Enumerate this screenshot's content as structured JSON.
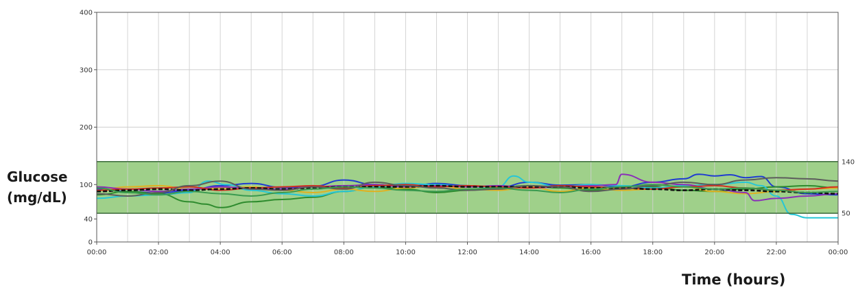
{
  "chart_data": {
    "type": "line",
    "xlabel": "Time (hours)",
    "ylabel_line1": "Glucose",
    "ylabel_line2": "(mg/dL)",
    "xlim": [
      0,
      24
    ],
    "ylim": [
      0,
      400
    ],
    "x_ticks": [
      0,
      2,
      4,
      6,
      8,
      10,
      12,
      14,
      16,
      18,
      20,
      22,
      24
    ],
    "x_tick_labels": [
      "00:00",
      "02:00",
      "04:00",
      "06:00",
      "08:00",
      "10:00",
      "12:00",
      "14:00",
      "16:00",
      "18:00",
      "20:00",
      "22:00",
      "00:00"
    ],
    "y_ticks": [
      0,
      40,
      100,
      200,
      300,
      400
    ],
    "y_tick_labels": [
      "0",
      "40",
      "100",
      "200",
      "300",
      "400"
    ],
    "target_range": {
      "low": 50,
      "high": 140,
      "low_label": "50",
      "high_label": "140",
      "color": "#9fd08a",
      "border_color": "#3a6a3a"
    },
    "vertical_grid_ticks": [
      1,
      2,
      3,
      4,
      5,
      6,
      7,
      8,
      9,
      10,
      11,
      12,
      13,
      14,
      15,
      16,
      17,
      18,
      19,
      20,
      21,
      22,
      23
    ],
    "horizontal_grid_values": [
      200,
      300
    ],
    "grid": true,
    "series": [
      {
        "color": "#1f3bd1",
        "x": [
          0,
          1,
          2,
          3,
          4,
          5,
          6,
          7,
          8,
          9,
          10,
          11,
          12,
          13,
          14,
          15,
          16,
          17,
          18,
          19,
          19.5,
          20,
          20.5,
          21,
          21.5,
          22,
          23,
          24
        ],
        "values": [
          92,
          88,
          85,
          90,
          98,
          102,
          95,
          97,
          108,
          100,
          96,
          102,
          98,
          95,
          104,
          99,
          100,
          96,
          104,
          110,
          118,
          115,
          117,
          112,
          114,
          96,
          84,
          82
        ]
      },
      {
        "color": "#2e8b2e",
        "x": [
          0,
          1,
          2,
          3,
          3.5,
          4,
          5,
          6,
          7,
          8,
          9,
          10,
          11,
          12,
          13,
          14,
          15,
          16,
          17,
          18,
          19,
          20,
          21,
          22,
          23,
          24
        ],
        "values": [
          82,
          88,
          84,
          70,
          66,
          60,
          70,
          74,
          78,
          88,
          96,
          92,
          86,
          90,
          95,
          98,
          94,
          90,
          92,
          96,
          90,
          88,
          92,
          96,
          98,
          94
        ]
      },
      {
        "color": "#26c6d6",
        "x": [
          0,
          1,
          2,
          3,
          3.6,
          4.2,
          5,
          6,
          7,
          8,
          9,
          10,
          11,
          12,
          13,
          13.5,
          14,
          15,
          16,
          17,
          18,
          19,
          20,
          21,
          21.5,
          22,
          22.5,
          23,
          24
        ],
        "values": [
          76,
          80,
          82,
          86,
          106,
          100,
          90,
          84,
          80,
          88,
          96,
          102,
          100,
          96,
          96,
          115,
          104,
          96,
          100,
          98,
          94,
          98,
          100,
          104,
          98,
          80,
          48,
          42,
          42
        ]
      },
      {
        "color": "#e0b020",
        "x": [
          0,
          1,
          2,
          3,
          4,
          5,
          6,
          7,
          8,
          9,
          10,
          11,
          12,
          13,
          14,
          15,
          16,
          17,
          18,
          19,
          20,
          21,
          22,
          23,
          24
        ],
        "values": [
          90,
          96,
          98,
          92,
          94,
          96,
          90,
          86,
          92,
          88,
          94,
          98,
          92,
          90,
          96,
          88,
          94,
          90,
          92,
          96,
          88,
          84,
          88,
          92,
          94
        ]
      },
      {
        "color": "#8a2fb8",
        "x": [
          0,
          1,
          2,
          3,
          4,
          5,
          6,
          7,
          8,
          9,
          10,
          11,
          12,
          13,
          14,
          15,
          16,
          16.8,
          17,
          18,
          19,
          20,
          21,
          21.3,
          22,
          23,
          24
        ],
        "values": [
          96,
          92,
          88,
          92,
          96,
          94,
          92,
          96,
          98,
          100,
          96,
          98,
          96,
          98,
          94,
          96,
          98,
          100,
          118,
          104,
          100,
          92,
          86,
          72,
          76,
          80,
          84
        ]
      },
      {
        "color": "#d03020",
        "x": [
          0,
          1,
          2,
          3,
          4,
          5,
          6,
          7,
          8,
          9,
          10,
          11,
          12,
          13,
          14,
          15,
          16,
          17,
          18,
          19,
          20,
          21,
          22,
          23,
          24
        ],
        "values": [
          90,
          92,
          94,
          96,
          90,
          94,
          96,
          98,
          94,
          98,
          100,
          96,
          98,
          96,
          94,
          98,
          96,
          94,
          92,
          96,
          98,
          94,
          90,
          92,
          96
        ]
      },
      {
        "color": "#111111",
        "x": [
          0,
          1,
          2,
          3,
          4,
          5,
          6,
          7,
          8,
          9,
          10,
          11,
          12,
          13,
          14,
          15,
          16,
          17,
          18,
          19,
          20,
          21,
          22,
          23,
          24
        ],
        "values": [
          88,
          90,
          92,
          90,
          92,
          94,
          92,
          94,
          96,
          96,
          96,
          98,
          96,
          96,
          96,
          96,
          94,
          94,
          92,
          90,
          92,
          90,
          88,
          86,
          84
        ]
      },
      {
        "color": "#5c5c5c",
        "x": [
          0,
          1,
          2,
          3,
          4,
          5,
          6,
          7,
          8,
          9,
          10,
          11,
          12,
          13,
          14,
          15,
          16,
          17,
          18,
          19,
          20,
          21,
          22,
          23,
          24
        ],
        "values": [
          84,
          80,
          86,
          98,
          106,
          92,
          90,
          96,
          92,
          104,
          98,
          94,
          90,
          92,
          98,
          96,
          88,
          92,
          98,
          104,
          100,
          108,
          112,
          110,
          106
        ]
      },
      {
        "color": "#3a9a50",
        "x": [
          0,
          1,
          2,
          3,
          4,
          5,
          6,
          7,
          8,
          9,
          10,
          11,
          12,
          13,
          14,
          15,
          16,
          17,
          18,
          19,
          20,
          21,
          22,
          23,
          24
        ],
        "values": [
          94,
          86,
          82,
          88,
          84,
          80,
          86,
          92,
          96,
          94,
          90,
          88,
          92,
          94,
          90,
          86,
          92,
          96,
          100,
          96,
          92,
          94,
          90,
          86,
          88
        ]
      }
    ]
  }
}
